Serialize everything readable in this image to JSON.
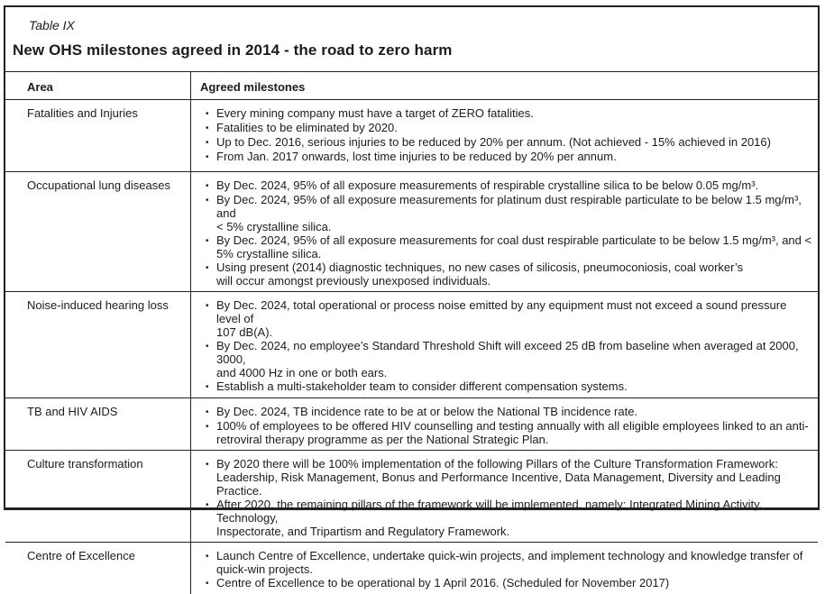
{
  "table": {
    "label": "Table IX",
    "title": "New OHS milestones agreed in 2014 - the road to zero harm",
    "bullet_char": "•",
    "columns": {
      "area": "Area",
      "milestones": "Agreed milestones"
    },
    "rows": [
      {
        "area": "Fatalities and Injuries",
        "bullets": [
          "Every mining company must have a target of ZERO fatalities.",
          "Fatalities to be eliminated by 2020.",
          "Up to Dec. 2016, serious injuries to be reduced by 20% per annum. (Not achieved - 15% achieved in 2016)",
          "From Jan. 2017 onwards, lost time injuries to be reduced by 20% per annum."
        ]
      },
      {
        "area": "Occupational lung diseases",
        "bullets": [
          "By Dec. 2024, 95% of all exposure measurements of respirable crystalline silica to be below 0.05 mg/m³.",
          "By Dec. 2024, 95% of all exposure measurements for platinum dust respirable particulate to be below 1.5 mg/m³, and\n< 5% crystalline silica.",
          "By Dec. 2024, 95% of all exposure measurements for coal dust respirable particulate to be below 1.5 mg/m³, and <\n5% crystalline silica.",
          "Using present (2014) diagnostic techniques, no new cases of silicosis, pneumoconiosis, coal worker’s\nwill occur amongst previously unexposed individuals."
        ]
      },
      {
        "area": "Noise-induced hearing loss",
        "bullets": [
          "By Dec. 2024, total operational or process noise emitted by any equipment must not exceed a sound pressure level of\n107 dB(A).",
          "By Dec. 2024, no employee’s Standard Threshold Shift will exceed 25 dB from baseline when averaged at 2000, 3000,\nand 4000 Hz in one or both ears.",
          "Establish a multi-stakeholder team to consider different compensation systems."
        ]
      },
      {
        "area": "TB and HIV AIDS",
        "bullets": [
          "By Dec. 2024, TB incidence rate to be at or below the National TB incidence rate.",
          "100% of employees to be offered HIV counselling and testing annually with all eligible employees linked to an anti-\nretroviral therapy programme as per the National Strategic Plan."
        ]
      },
      {
        "area": "Culture transformation",
        "bullets": [
          "By 2020 there will be 100% implementation of the following Pillars of the Culture Transformation Framework:\nLeadership, Risk Management, Bonus and Performance Incentive, Data Management, Diversity and Leading Practice.",
          "After 2020, the remaining pillars of the framework will be implemented, namely: Integrated Mining Activity, Technology,\nInspectorate, and Tripartism and Regulatory Framework."
        ]
      },
      {
        "area": "Centre of Excellence",
        "bullets": [
          "Launch Centre of Excellence, undertake quick-win projects, and implement technology and knowledge transfer of\nquick-win projects.",
          "Centre of Excellence to be operational by 1 April 2016. (Scheduled for November 2017)"
        ]
      }
    ]
  }
}
